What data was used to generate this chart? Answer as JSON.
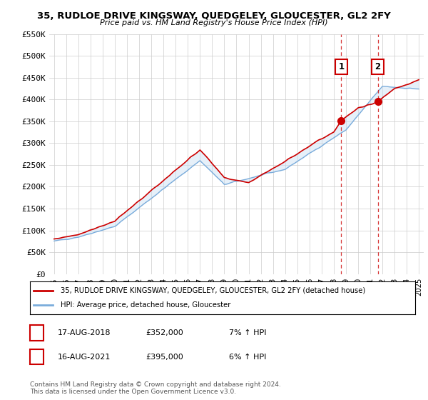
{
  "title": "35, RUDLOE DRIVE KINGSWAY, QUEDGELEY, GLOUCESTER, GL2 2FY",
  "subtitle": "Price paid vs. HM Land Registry's House Price Index (HPI)",
  "ylabel_ticks": [
    "£0",
    "£50K",
    "£100K",
    "£150K",
    "£200K",
    "£250K",
    "£300K",
    "£350K",
    "£400K",
    "£450K",
    "£500K",
    "£550K"
  ],
  "ylim": [
    0,
    550000
  ],
  "ytick_vals": [
    0,
    50000,
    100000,
    150000,
    200000,
    250000,
    300000,
    350000,
    400000,
    450000,
    500000,
    550000
  ],
  "legend_line1": "35, RUDLOE DRIVE KINGSWAY, QUEDGELEY, GLOUCESTER, GL2 2FY (detached house)",
  "legend_line2": "HPI: Average price, detached house, Gloucester",
  "annotation1_label": "1",
  "annotation1_date": "17-AUG-2018",
  "annotation1_price": "£352,000",
  "annotation1_hpi": "7% ↑ HPI",
  "annotation2_label": "2",
  "annotation2_date": "16-AUG-2021",
  "annotation2_price": "£395,000",
  "annotation2_hpi": "6% ↑ HPI",
  "footer": "Contains HM Land Registry data © Crown copyright and database right 2024.\nThis data is licensed under the Open Government Licence v3.0.",
  "red_color": "#cc0000",
  "blue_color": "#7aacdb",
  "shade_color": "#c8dff2",
  "grid_color": "#cccccc",
  "bg_color": "#ffffff",
  "annotation_box_color": "#cc0000",
  "year1": 2018.62,
  "value1": 352000,
  "year2": 2021.62,
  "value2": 395000,
  "xlim_left": 1994.6,
  "xlim_right": 2025.4
}
